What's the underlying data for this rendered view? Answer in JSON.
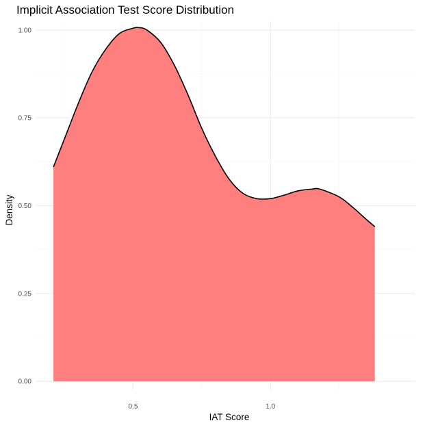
{
  "chart_data": {
    "type": "area",
    "title": "Implicit Association Test Score Distribution",
    "xlabel": "IAT Score",
    "ylabel": "Density",
    "xlim": [
      0.145,
      1.525
    ],
    "ylim": [
      -0.025,
      1.025
    ],
    "x_ticks": [
      0.5,
      1.0
    ],
    "x_tick_labels": [
      "0.5",
      "1.0"
    ],
    "x_minor_ticks": [
      0.25,
      0.75,
      1.25
    ],
    "y_ticks": [
      0.0,
      0.25,
      0.5,
      0.75,
      1.0
    ],
    "y_tick_labels": [
      "0.00",
      "0.25",
      "0.50",
      "0.75",
      "1.00"
    ],
    "y_minor_ticks": [
      0.125,
      0.375,
      0.625,
      0.875
    ],
    "grid": true,
    "fill_color": "#ff7f7f",
    "line_color": "#000000",
    "series": [
      {
        "x": [
          0.21,
          0.25,
          0.3,
          0.35,
          0.4,
          0.45,
          0.5,
          0.52,
          0.55,
          0.6,
          0.65,
          0.7,
          0.75,
          0.8,
          0.85,
          0.9,
          0.95,
          1.0,
          1.05,
          1.1,
          1.15,
          1.18,
          1.25,
          1.3,
          1.35,
          1.38
        ],
        "y": [
          0.61,
          0.69,
          0.79,
          0.88,
          0.945,
          0.99,
          1.005,
          1.007,
          1.0,
          0.965,
          0.9,
          0.815,
          0.72,
          0.64,
          0.575,
          0.535,
          0.52,
          0.52,
          0.53,
          0.542,
          0.547,
          0.547,
          0.525,
          0.495,
          0.46,
          0.44
        ]
      }
    ]
  }
}
